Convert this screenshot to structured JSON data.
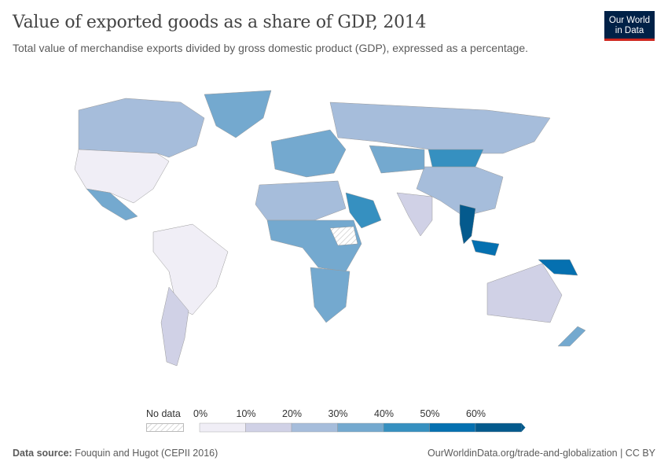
{
  "header": {
    "title": "Value of exported goods as a share of GDP, 2014",
    "subtitle": "Total value of merchandise exports divided by gross domestic product (GDP), expressed as a percentage.",
    "logo_line1": "Our World",
    "logo_line2": "in Data"
  },
  "chart_data": {
    "type": "choropleth",
    "title": "Value of exported goods as a share of GDP, 2014",
    "unit": "%",
    "year": 2014,
    "legend": {
      "no_data_label": "No data",
      "no_data_color": "#e8e8e8",
      "bins": [
        0,
        10,
        20,
        30,
        40,
        50,
        60
      ],
      "tick_labels": [
        "0%",
        "10%",
        "20%",
        "30%",
        "40%",
        "50%",
        "60%"
      ],
      "colors": [
        "#f0eef6",
        "#d0d1e6",
        "#a6bddb",
        "#74a9cf",
        "#3690c0",
        "#0570b0",
        "#045a8d"
      ],
      "placement": "bottom"
    },
    "regions": [
      {
        "name": "Canada",
        "bin": 2
      },
      {
        "name": "United States",
        "bin": 0
      },
      {
        "name": "Mexico",
        "bin": 3
      },
      {
        "name": "Greenland",
        "bin": 3
      },
      {
        "name": "Brazil",
        "bin": 0
      },
      {
        "name": "Argentina",
        "bin": 1
      },
      {
        "name": "Russia",
        "bin": 2
      },
      {
        "name": "Europe",
        "bin": 3
      },
      {
        "name": "China",
        "bin": 2
      },
      {
        "name": "Mongolia",
        "bin": 4
      },
      {
        "name": "Kazakhstan",
        "bin": 3
      },
      {
        "name": "India",
        "bin": 1
      },
      {
        "name": "Saudi Arabia",
        "bin": 4
      },
      {
        "name": "Vietnam",
        "bin": 6
      },
      {
        "name": "Malaysia",
        "bin": 5
      },
      {
        "name": "Australia",
        "bin": 1
      },
      {
        "name": "Papua New Guinea",
        "bin": 5
      },
      {
        "name": "Africa North",
        "bin": 2
      },
      {
        "name": "Africa Central",
        "bin": 3
      },
      {
        "name": "Southern Africa",
        "bin": 3
      },
      {
        "name": "New Zealand",
        "bin": 3
      }
    ]
  },
  "footer": {
    "source_label": "Data source:",
    "source": "Fouquin and Hugot (CEPII 2016)",
    "link": "OurWorldinData.org/trade-and-globalization | CC BY"
  }
}
